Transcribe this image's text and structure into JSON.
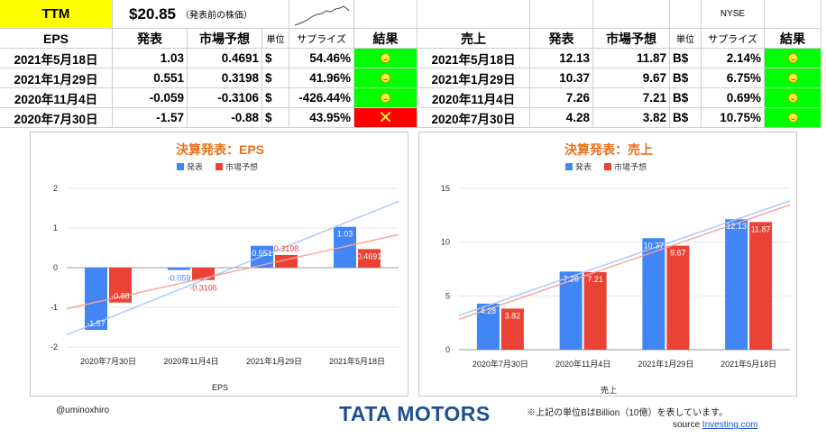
{
  "header": {
    "ticker": "TTM",
    "price": "$20.85",
    "price_note": "（発表前の株価）",
    "exchange": "NYSE"
  },
  "eps_table": {
    "title": "EPS",
    "cols": [
      "発表",
      "市場予想",
      "単位",
      "サプライズ",
      "結果"
    ],
    "rows": [
      {
        "date": "2021年5月18日",
        "actual": "1.03",
        "forecast": "0.4691",
        "unit": "$",
        "surprise": "54.46%",
        "result": "beat"
      },
      {
        "date": "2021年1月29日",
        "actual": "0.551",
        "forecast": "0.3198",
        "unit": "$",
        "surprise": "41.96%",
        "result": "beat"
      },
      {
        "date": "2020年11月4日",
        "actual": "-0.059",
        "forecast": "-0.3106",
        "unit": "$",
        "surprise": "-426.44%",
        "result": "beat"
      },
      {
        "date": "2020年7月30日",
        "actual": "-1.57",
        "forecast": "-0.88",
        "unit": "$",
        "surprise": "43.95%",
        "result": "miss"
      }
    ]
  },
  "sales_table": {
    "title": "売上",
    "cols": [
      "発表",
      "市場予想",
      "単位",
      "サプライズ",
      "結果"
    ],
    "rows": [
      {
        "date": "2021年5月18日",
        "actual": "12.13",
        "forecast": "11.87",
        "unit": "B$",
        "surprise": "2.14%",
        "result": "beat"
      },
      {
        "date": "2021年1月29日",
        "actual": "10.37",
        "forecast": "9.67",
        "unit": "B$",
        "surprise": "6.75%",
        "result": "beat"
      },
      {
        "date": "2020年11月4日",
        "actual": "7.26",
        "forecast": "7.21",
        "unit": "B$",
        "surprise": "0.69%",
        "result": "beat"
      },
      {
        "date": "2020年7月30日",
        "actual": "4.28",
        "forecast": "3.82",
        "unit": "B$",
        "surprise": "10.75%",
        "result": "beat"
      }
    ]
  },
  "result_marks": {
    "miss": "✕"
  },
  "colors": {
    "actual": "#4285f4",
    "forecast": "#ea4335",
    "title": "#e8711a",
    "beat": "#00ff00",
    "miss": "#ff0000"
  },
  "chart_data": [
    {
      "type": "bar",
      "title": "決算発表：EPS",
      "xlabel": "EPS",
      "ylabel": "",
      "categories": [
        "2020年7月30日",
        "2020年11月4日",
        "2021年1月29日",
        "2021年5月18日"
      ],
      "series": [
        {
          "name": "発表",
          "values": [
            -1.57,
            -0.059,
            0.551,
            1.03
          ],
          "labels": [
            "-1.57",
            "-0.059",
            "0.551",
            "1.03"
          ]
        },
        {
          "name": "市場予想",
          "values": [
            -0.88,
            -0.3106,
            0.3198,
            0.4691
          ],
          "labels": [
            "-0.88",
            "-0.3106",
            "0.3198",
            "0.4691"
          ]
        }
      ],
      "ylim": [
        -2,
        2
      ],
      "yticks": [
        "2",
        "1",
        "0",
        "-1",
        "-2"
      ],
      "trendlines": true,
      "legend": "top"
    },
    {
      "type": "bar",
      "title": "決算発表：売上",
      "xlabel": "売上",
      "ylabel": "",
      "categories": [
        "2020年7月30日",
        "2020年11月4日",
        "2021年1月29日",
        "2021年5月18日"
      ],
      "series": [
        {
          "name": "発表",
          "values": [
            4.28,
            7.26,
            10.37,
            12.13
          ],
          "labels": [
            "4.28",
            "7.26",
            "10.37",
            "12.13"
          ]
        },
        {
          "name": "市場予想",
          "values": [
            3.82,
            7.21,
            9.67,
            11.87
          ],
          "labels": [
            "3.82",
            "7.21",
            "9.67",
            "11.87"
          ]
        }
      ],
      "ylim": [
        0,
        15
      ],
      "yticks": [
        "15",
        "10",
        "5",
        "0"
      ],
      "trendlines": true,
      "legend": "top"
    }
  ],
  "footer": {
    "handle": "@uminoxhiro",
    "logo": "TATA MOTORS",
    "note": "※上記の単位BはBillion（10億）を表しています。",
    "source_label": "source",
    "source_link": "Investing.com"
  }
}
